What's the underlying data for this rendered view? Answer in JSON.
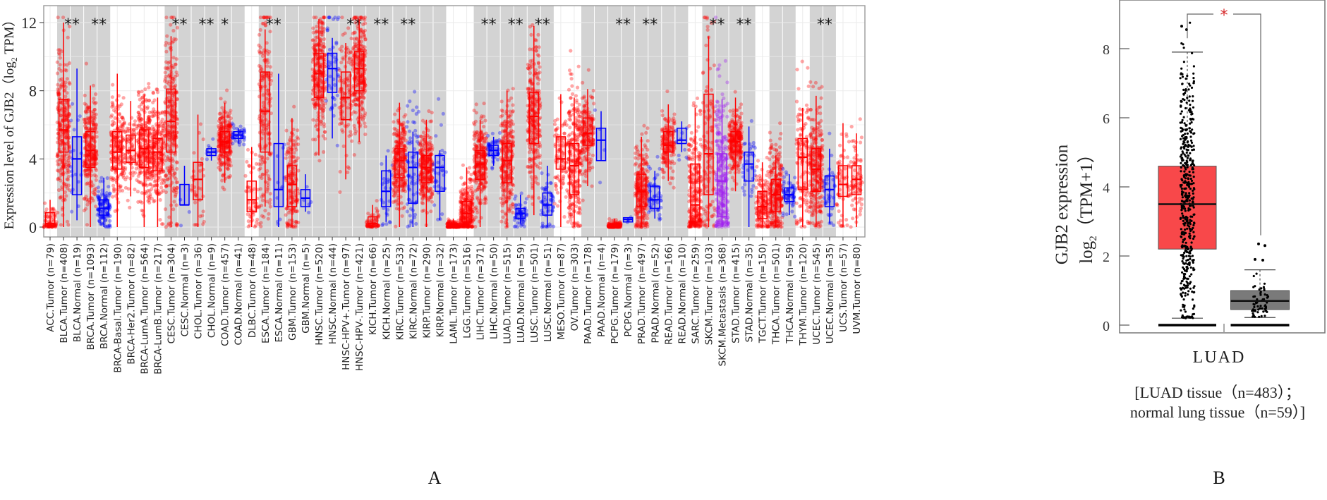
{
  "chart_data": [
    {
      "panel": "A",
      "type": "box",
      "title": "",
      "xlabel": "",
      "ylabel": "Expression level of GJB2 (log2 TPM)",
      "ylim": [
        0,
        12.5
      ],
      "yticks": [
        0,
        4,
        8,
        12
      ],
      "grid": true,
      "colors": {
        "tumor": "#ff0000",
        "normal": "#0000ff",
        "metastasis": "#a020f0",
        "shade": "#d3d3d3"
      },
      "categories": [
        {
          "label": "ACC.Tumor (n=79)",
          "kind": "tumor",
          "shaded": false,
          "sig": "",
          "q1": 0.05,
          "median": 0.2,
          "q3": 0.85,
          "wlo": 0,
          "whi": 1.6
        },
        {
          "label": "BLCA.Tumor (n=408)",
          "kind": "tumor",
          "shaded": true,
          "sig": "**",
          "q1": 4.4,
          "median": 5.7,
          "q3": 7.5,
          "wlo": 0,
          "whi": 12
        },
        {
          "label": "BLCA.Normal (n=19)",
          "kind": "normal",
          "shaded": true,
          "sig": "",
          "q1": 1.9,
          "median": 4.0,
          "q3": 5.3,
          "wlo": 0.4,
          "whi": 9.3
        },
        {
          "label": "BRCA.Tumor (n=1093)",
          "kind": "tumor",
          "shaded": true,
          "sig": "**",
          "q1": 3.5,
          "median": 4.5,
          "q3": 5.6,
          "wlo": 0,
          "whi": 8.3
        },
        {
          "label": "BRCA.Normal (n=112)",
          "kind": "normal",
          "shaded": true,
          "sig": "",
          "q1": 0.7,
          "median": 1.1,
          "q3": 1.6,
          "wlo": 0,
          "whi": 2.9
        },
        {
          "label": "BRCA-Basal.Tumor (n=190)",
          "kind": "tumor",
          "shaded": false,
          "sig": "",
          "q1": 3.4,
          "median": 4.4,
          "q3": 5.6,
          "wlo": 0,
          "whi": 9.0
        },
        {
          "label": "BRCA-Her2.Tumor (n=82)",
          "kind": "tumor",
          "shaded": false,
          "sig": "",
          "q1": 3.8,
          "median": 4.5,
          "q3": 5.4,
          "wlo": 1.8,
          "whi": 7.4
        },
        {
          "label": "BRCA-LumA.Tumor (n=564)",
          "kind": "tumor",
          "shaded": false,
          "sig": "",
          "q1": 3.5,
          "median": 4.6,
          "q3": 5.7,
          "wlo": 0,
          "whi": 7.8
        },
        {
          "label": "BRCA-LumB.Tumor (n=217)",
          "kind": "tumor",
          "shaded": false,
          "sig": "",
          "q1": 3.3,
          "median": 4.4,
          "q3": 5.2,
          "wlo": 0,
          "whi": 7.6
        },
        {
          "label": "CESC.Tumor (n=304)",
          "kind": "tumor",
          "shaded": true,
          "sig": "**",
          "q1": 4.4,
          "median": 6.2,
          "q3": 8.1,
          "wlo": 0,
          "whi": 11.2
        },
        {
          "label": "CESC.Normal (n=3)",
          "kind": "normal",
          "shaded": true,
          "sig": "",
          "q1": 1.3,
          "median": 1.3,
          "q3": 2.5,
          "wlo": 1.3,
          "whi": 3.6
        },
        {
          "label": "CHOL.Tumor (n=36)",
          "kind": "tumor",
          "shaded": true,
          "sig": "**",
          "q1": 1.6,
          "median": 2.8,
          "q3": 3.8,
          "wlo": 0,
          "whi": 6.6
        },
        {
          "label": "CHOL.Normal (n=9)",
          "kind": "normal",
          "shaded": true,
          "sig": "",
          "q1": 4.2,
          "median": 4.4,
          "q3": 4.6,
          "wlo": 3.9,
          "whi": 4.7
        },
        {
          "label": "COAD.Tumor (n=457)",
          "kind": "tumor",
          "shaded": true,
          "sig": "*",
          "q1": 4.4,
          "median": 5.0,
          "q3": 5.6,
          "wlo": 2.6,
          "whi": 7.3
        },
        {
          "label": "COAD.Normal (n=41)",
          "kind": "normal",
          "shaded": true,
          "sig": "",
          "q1": 5.2,
          "median": 5.4,
          "q3": 5.6,
          "wlo": 4.9,
          "whi": 5.8
        },
        {
          "label": "DLBC.Tumor (n=48)",
          "kind": "tumor",
          "shaded": false,
          "sig": "",
          "q1": 0.9,
          "median": 1.6,
          "q3": 2.7,
          "wlo": 0,
          "whi": 4.7
        },
        {
          "label": "ESCA.Tumor (n=184)",
          "kind": "tumor",
          "shaded": true,
          "sig": "**",
          "q1": 4.4,
          "median": 6.8,
          "q3": 9.1,
          "wlo": 1.2,
          "whi": 11.6
        },
        {
          "label": "ESCA.Normal (n=11)",
          "kind": "normal",
          "shaded": true,
          "sig": "",
          "q1": 1.2,
          "median": 2.2,
          "q3": 4.9,
          "wlo": 0,
          "whi": 9.0
        },
        {
          "label": "GBM.Tumor (n=153)",
          "kind": "tumor",
          "shaded": true,
          "sig": "",
          "q1": 1.2,
          "median": 2.5,
          "q3": 3.6,
          "wlo": 0,
          "whi": 6.4
        },
        {
          "label": "GBM.Normal (n=5)",
          "kind": "normal",
          "shaded": true,
          "sig": "",
          "q1": 1.2,
          "median": 1.7,
          "q3": 2.2,
          "wlo": 0.9,
          "whi": 3.1
        },
        {
          "label": "HNSC.Tumor (n=520)",
          "kind": "tumor",
          "shaded": true,
          "sig": "",
          "q1": 7.6,
          "median": 9.0,
          "q3": 10.2,
          "wlo": 4.2,
          "whi": 12.2
        },
        {
          "label": "HNSC.Normal (n=44)",
          "kind": "normal",
          "shaded": true,
          "sig": "",
          "q1": 7.9,
          "median": 9.3,
          "q3": 10.2,
          "wlo": 5.2,
          "whi": 11.1
        },
        {
          "label": "HNSC-HPV+.Tumor (n=97)",
          "kind": "tumor",
          "shaded": true,
          "sig": "**",
          "q1": 6.3,
          "median": 7.6,
          "q3": 9.1,
          "wlo": 2.8,
          "whi": 10.8
        },
        {
          "label": "HNSC-HPV-.Tumor (n=421)",
          "kind": "tumor",
          "shaded": true,
          "sig": "",
          "q1": 8.0,
          "median": 9.3,
          "q3": 10.3,
          "wlo": 5.0,
          "whi": 12.2
        },
        {
          "label": "KICH.Tumor (n=66)",
          "kind": "tumor",
          "shaded": true,
          "sig": "**",
          "q1": 0.05,
          "median": 0.2,
          "q3": 0.6,
          "wlo": 0,
          "whi": 1.3
        },
        {
          "label": "KICH.Normal (n=25)",
          "kind": "normal",
          "shaded": true,
          "sig": "",
          "q1": 1.2,
          "median": 2.1,
          "q3": 3.3,
          "wlo": 0.3,
          "whi": 4.2
        },
        {
          "label": "KIRC.Tumor (n=533)",
          "kind": "tumor",
          "shaded": true,
          "sig": "**",
          "q1": 2.9,
          "median": 3.9,
          "q3": 4.6,
          "wlo": 0,
          "whi": 7.3
        },
        {
          "label": "KIRC.Normal (n=72)",
          "kind": "normal",
          "shaded": true,
          "sig": "",
          "q1": 1.4,
          "median": 3.5,
          "q3": 4.4,
          "wlo": 0,
          "whi": 5.6
        },
        {
          "label": "KIRP.Tumor (n=290)",
          "kind": "tumor",
          "shaded": true,
          "sig": "",
          "q1": 2.6,
          "median": 3.5,
          "q3": 4.2,
          "wlo": 0,
          "whi": 6.3
        },
        {
          "label": "KIRP.Normal (n=32)",
          "kind": "normal",
          "shaded": true,
          "sig": "",
          "q1": 2.1,
          "median": 3.5,
          "q3": 4.2,
          "wlo": 0.4,
          "whi": 4.5
        },
        {
          "label": "LAML.Tumor (n=173)",
          "kind": "tumor",
          "shaded": false,
          "sig": "",
          "q1": 0.0,
          "median": 0.05,
          "q3": 0.2,
          "wlo": 0,
          "whi": 0.5
        },
        {
          "label": "LGG.Tumor (n=516)",
          "kind": "tumor",
          "shaded": false,
          "sig": "",
          "q1": 0.3,
          "median": 0.8,
          "q3": 1.5,
          "wlo": 0,
          "whi": 3.5
        },
        {
          "label": "LIHC.Tumor (n=371)",
          "kind": "tumor",
          "shaded": true,
          "sig": "**",
          "q1": 2.8,
          "median": 3.7,
          "q3": 4.5,
          "wlo": 0,
          "whi": 6.3
        },
        {
          "label": "LIHC.Normal (n=50)",
          "kind": "normal",
          "shaded": true,
          "sig": "",
          "q1": 4.2,
          "median": 4.5,
          "q3": 4.8,
          "wlo": 3.6,
          "whi": 5.3
        },
        {
          "label": "LUAD.Tumor (n=515)",
          "kind": "tumor",
          "shaded": true,
          "sig": "**",
          "q1": 2.6,
          "median": 3.9,
          "q3": 4.9,
          "wlo": 0,
          "whi": 8.0
        },
        {
          "label": "LUAD.Normal (n=59)",
          "kind": "normal",
          "shaded": true,
          "sig": "",
          "q1": 0.5,
          "median": 0.8,
          "q3": 1.1,
          "wlo": 0.2,
          "whi": 1.9
        },
        {
          "label": "LUSC.Tumor (n=501)",
          "kind": "tumor",
          "shaded": true,
          "sig": "**",
          "q1": 4.9,
          "median": 6.5,
          "q3": 7.9,
          "wlo": 0.7,
          "whi": 11.8
        },
        {
          "label": "LUSC.Normal (n=51)",
          "kind": "normal",
          "shaded": true,
          "sig": "",
          "q1": 0.7,
          "median": 1.3,
          "q3": 2.0,
          "wlo": 0,
          "whi": 3.6
        },
        {
          "label": "MESO.Tumor (n=87)",
          "kind": "tumor",
          "shaded": false,
          "sig": "",
          "q1": 3.4,
          "median": 4.0,
          "q3": 5.3,
          "wlo": 0,
          "whi": 7.8
        },
        {
          "label": "OV.Tumor (n=303)",
          "kind": "tumor",
          "shaded": false,
          "sig": "",
          "q1": 1.9,
          "median": 3.6,
          "q3": 4.9,
          "wlo": 0,
          "whi": 7.6
        },
        {
          "label": "PAAD.Tumor (n=178)",
          "kind": "tumor",
          "shaded": true,
          "sig": "",
          "q1": 4.8,
          "median": 5.5,
          "q3": 6.4,
          "wlo": 2.4,
          "whi": 8.1
        },
        {
          "label": "PAAD.Normal (n=4)",
          "kind": "normal",
          "shaded": true,
          "sig": "",
          "q1": 3.9,
          "median": 5.1,
          "q3": 5.8,
          "wlo": 3.9,
          "whi": 6.8
        },
        {
          "label": "PCPG.Tumor (n=179)",
          "kind": "tumor",
          "shaded": true,
          "sig": "**",
          "q1": 0.0,
          "median": 0.05,
          "q3": 0.2,
          "wlo": 0,
          "whi": 0.5
        },
        {
          "label": "PCPG.Normal (n=3)",
          "kind": "normal",
          "shaded": true,
          "sig": "",
          "q1": 0.3,
          "median": 0.45,
          "q3": 0.55,
          "wlo": 0.3,
          "whi": 0.55
        },
        {
          "label": "PRAD.Tumor (n=497)",
          "kind": "tumor",
          "shaded": true,
          "sig": "**",
          "q1": 1.2,
          "median": 2.1,
          "q3": 3.1,
          "wlo": 0,
          "whi": 5.3
        },
        {
          "label": "PRAD.Normal (n=52)",
          "kind": "normal",
          "shaded": true,
          "sig": "",
          "q1": 1.1,
          "median": 1.6,
          "q3": 2.4,
          "wlo": 0.5,
          "whi": 3.3
        },
        {
          "label": "READ.Tumor (n=166)",
          "kind": "tumor",
          "shaded": true,
          "sig": "",
          "q1": 4.4,
          "median": 4.8,
          "q3": 5.6,
          "wlo": 2.7,
          "whi": 7.2
        },
        {
          "label": "READ.Normal (n=10)",
          "kind": "normal",
          "shaded": true,
          "sig": "",
          "q1": 4.9,
          "median": 5.1,
          "q3": 5.8,
          "wlo": 4.4,
          "whi": 6.2
        },
        {
          "label": "SARC.Tumor (n=259)",
          "kind": "tumor",
          "shaded": false,
          "sig": "",
          "q1": 0.3,
          "median": 1.3,
          "q3": 3.7,
          "wlo": 0,
          "whi": 7.0
        },
        {
          "label": "SKCM.Tumor (n=103)",
          "kind": "tumor",
          "shaded": true,
          "sig": "**",
          "q1": 1.9,
          "median": 4.3,
          "q3": 7.8,
          "wlo": 0,
          "whi": 11.2
        },
        {
          "label": "SKCM.Metastasis (n=368)",
          "kind": "metastasis",
          "shaded": true,
          "sig": "",
          "q1": 0.6,
          "median": 2.7,
          "q3": 4.3,
          "wlo": 0,
          "whi": 7.5
        },
        {
          "label": "STAD.Tumor (n=415)",
          "kind": "tumor",
          "shaded": true,
          "sig": "**",
          "q1": 4.4,
          "median": 5.0,
          "q3": 5.6,
          "wlo": 2.1,
          "whi": 7.6
        },
        {
          "label": "STAD.Normal (n=35)",
          "kind": "normal",
          "shaded": true,
          "sig": "",
          "q1": 2.7,
          "median": 3.7,
          "q3": 4.4,
          "wlo": 0,
          "whi": 5.9
        },
        {
          "label": "TGCT.Tumor (n=150)",
          "kind": "tumor",
          "shaded": false,
          "sig": "",
          "q1": 0.5,
          "median": 1.2,
          "q3": 2.1,
          "wlo": 0,
          "whi": 3.8
        },
        {
          "label": "THCA.Tumor (n=501)",
          "kind": "tumor",
          "shaded": true,
          "sig": "",
          "q1": 0.9,
          "median": 1.9,
          "q3": 2.8,
          "wlo": 0,
          "whi": 4.2
        },
        {
          "label": "THCA.Normal (n=59)",
          "kind": "normal",
          "shaded": true,
          "sig": "",
          "q1": 1.5,
          "median": 1.9,
          "q3": 2.3,
          "wlo": 0.7,
          "whi": 3.1
        },
        {
          "label": "THYM.Tumor (n=120)",
          "kind": "tumor",
          "shaded": false,
          "sig": "",
          "q1": 2.2,
          "median": 4.1,
          "q3": 5.2,
          "wlo": 0,
          "whi": 7.0
        },
        {
          "label": "UCEC.Tumor (n=545)",
          "kind": "tumor",
          "shaded": true,
          "sig": "**",
          "q1": 2.1,
          "median": 3.4,
          "q3": 4.6,
          "wlo": 0,
          "whi": 7.7
        },
        {
          "label": "UCEC.Normal (n=35)",
          "kind": "normal",
          "shaded": true,
          "sig": "",
          "q1": 1.2,
          "median": 2.2,
          "q3": 3.0,
          "wlo": 0.2,
          "whi": 4.6
        },
        {
          "label": "UCS.Tumor (n=57)",
          "kind": "tumor",
          "shaded": false,
          "sig": "",
          "q1": 1.8,
          "median": 2.5,
          "q3": 3.6,
          "wlo": 0,
          "whi": 6.1
        },
        {
          "label": "UVM.Tumor (n=80)",
          "kind": "tumor",
          "shaded": false,
          "sig": "",
          "q1": 1.9,
          "median": 2.8,
          "q3": 3.6,
          "wlo": 0,
          "whi": 5.5
        }
      ]
    },
    {
      "panel": "B",
      "type": "box",
      "title": "",
      "xlabel": "LUAD",
      "xsublabel_line1": "[LUAD tissue(n=483);",
      "xsublabel_line2": "normal lung tissue (n=59)]",
      "ylabel_line1": "GJB2 expression",
      "ylabel_line2": "log2(TPM+1)",
      "ylim": [
        -0.1,
        9.3
      ],
      "yticks": [
        0,
        2,
        4,
        6,
        8
      ],
      "significance": "*",
      "series": [
        {
          "name": "LUAD tissue",
          "n": 483,
          "color": "#f8484a",
          "q1": 2.2,
          "median": 3.5,
          "q3": 4.6,
          "wlo": 0.2,
          "whi": 7.9
        },
        {
          "name": "normal lung tissue",
          "n": 59,
          "color": "#7a7a7a",
          "q1": 0.45,
          "median": 0.7,
          "q3": 1.0,
          "wlo": 0.22,
          "whi": 1.6
        }
      ]
    }
  ],
  "labels": {
    "panelA": "A",
    "panelB": "B",
    "ylabelA_prefix": "Expression level of GJB2（log",
    "ylabelA_sub": "2",
    "ylabelA_suffix": " TPM）",
    "ylabelB_line1": "GJB2 expression",
    "ylabelB_line2_prefix": "log",
    "ylabelB_line2_sub": "2",
    "ylabelB_line2_suffix": "（TPM+1）",
    "xB_main": "LUAD",
    "xB_line1": "[LUAD tissue（n=483）；",
    "xB_line2": "normal lung tissue（n=59）]"
  }
}
